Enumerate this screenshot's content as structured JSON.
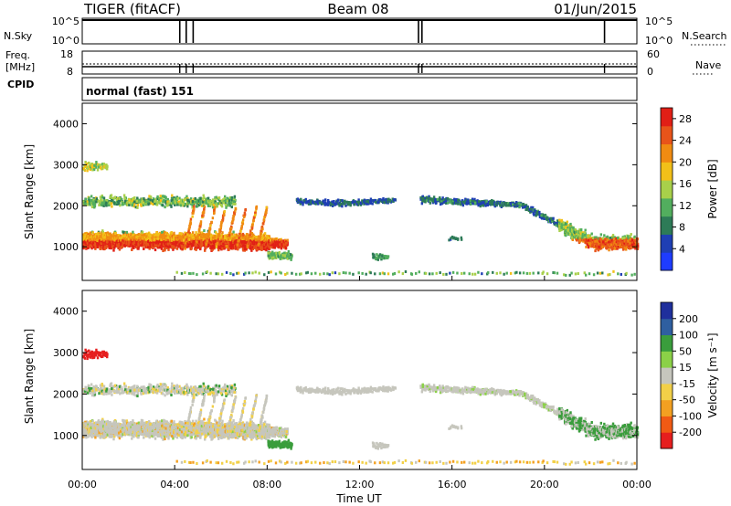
{
  "header": {
    "radar": "TIGER (fitACF)",
    "beam": "Beam 08",
    "date": "01/Jun/2015"
  },
  "aux_panels": {
    "nsky_label": "N.Sky",
    "nsky_ticks": [
      "10^5",
      "10^0"
    ],
    "nsearch_label": "N.Search",
    "nsearch_ticks": [
      "10^5",
      "10^0"
    ],
    "freq_label_lines": [
      "Freq.",
      "[MHz]"
    ],
    "freq_ticks": [
      "18",
      "8"
    ],
    "nave_label": "Nave",
    "nave_ticks": [
      "60",
      "0"
    ],
    "cpid_label": "CPID",
    "cpid_value": "normal (fast) 151"
  },
  "colors": {
    "power": [
      "#1e3cff",
      "#1f3fb4",
      "#2d7b57",
      "#52ae5e",
      "#a8d04a",
      "#f2c019",
      "#f08b12",
      "#e8541a",
      "#e11f16"
    ],
    "velocity": [
      "#e61e1e",
      "#f05a14",
      "#f3a021",
      "#f2d048",
      "#c6c6bd",
      "#8bd147",
      "#3a9d3c",
      "#2f5fa0",
      "#1f2f9c"
    ],
    "frame": "#000000"
  },
  "chart_data": [
    {
      "type": "heatmap",
      "panel": "power",
      "xlabel": "",
      "ylabel": "Slant Range [km]",
      "x_range_hours": [
        0,
        24
      ],
      "ylim": [
        180,
        4500
      ],
      "y_ticks": [
        "1000",
        "2000",
        "3000",
        "4000"
      ],
      "colorbar_label": "Power [dB]",
      "colorbar_ticks": [
        "4",
        "8",
        "12",
        "16",
        "20",
        "24",
        "28"
      ],
      "colorbar_range": [
        0,
        30
      ],
      "grid": false
    },
    {
      "type": "heatmap",
      "panel": "velocity",
      "xlabel": "Time UT",
      "ylabel": "Slant Range [km]",
      "x_ticks": [
        "00:00",
        "04:00",
        "08:00",
        "12:00",
        "16:00",
        "20:00",
        "00:00"
      ],
      "ylim": [
        180,
        4500
      ],
      "y_ticks": [
        "1000",
        "2000",
        "3000",
        "4000"
      ],
      "colorbar_label": "Velocity [m s⁻¹]",
      "colorbar_ticks": [
        "200",
        "100",
        "50",
        "15",
        "-15",
        "-50",
        "-100",
        "-200"
      ],
      "grid": false
    }
  ]
}
